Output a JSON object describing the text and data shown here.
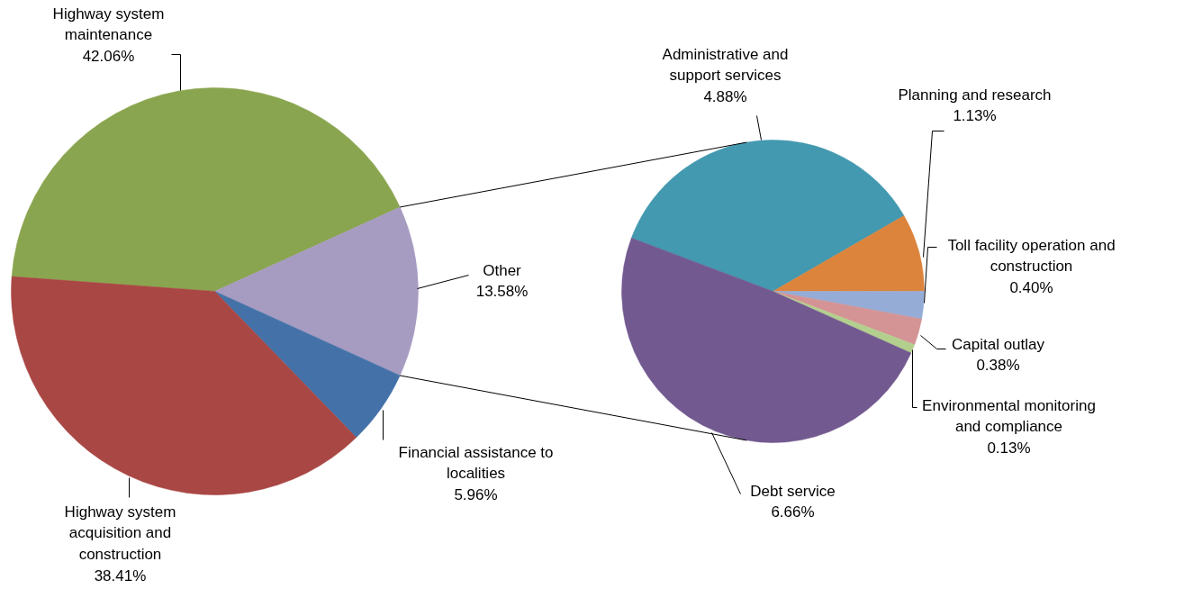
{
  "chart_data": [
    {
      "type": "pie",
      "categories": [
        "Highway system maintenance",
        "Other",
        "Financial assistance to localities",
        "Highway system acquisition and construction"
      ],
      "values": [
        42.06,
        13.58,
        5.96,
        38.41
      ],
      "colors": [
        "#8aa54f",
        "#a69bc1",
        "#4472a8",
        "#a94744"
      ],
      "value_labels": [
        "42.06%",
        "13.58%",
        "5.96%",
        "38.41%"
      ]
    },
    {
      "type": "pie",
      "categories": [
        "Administrative and support services",
        "Planning and research",
        "Toll facility operation and construction",
        "Capital outlay",
        "Environmental monitoring and compliance",
        "Debt service"
      ],
      "values": [
        4.88,
        1.13,
        0.4,
        0.38,
        0.13,
        6.66
      ],
      "colors": [
        "#4399b0",
        "#dc843c",
        "#95acd6",
        "#d49394",
        "#b3cf8e",
        "#725990"
      ],
      "value_labels": [
        "4.88%",
        "1.13%",
        "0.40%",
        "0.38%",
        "0.13%",
        "6.66%"
      ]
    }
  ]
}
